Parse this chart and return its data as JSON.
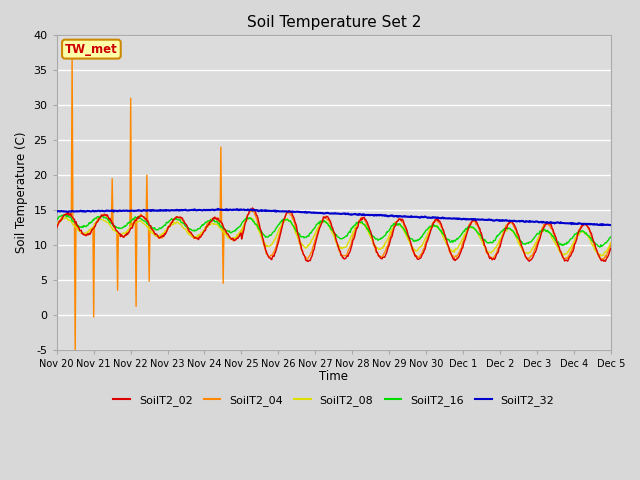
{
  "title": "Soil Temperature Set 2",
  "ylabel": "Soil Temperature (C)",
  "xlabel": "Time",
  "ylim": [
    -5,
    40
  ],
  "fig_bg": "#d8d8d8",
  "plot_bg": "#dcdcdc",
  "grid_color": "#ffffff",
  "series_colors": {
    "SoilT2_02": "#dd0000",
    "SoilT2_04": "#ff8800",
    "SoilT2_08": "#dddd00",
    "SoilT2_16": "#00dd00",
    "SoilT2_32": "#0000cc"
  },
  "xtick_labels": [
    "Nov 20",
    "Nov 21",
    "Nov 22",
    "Nov 23",
    "Nov 24",
    "Nov 25",
    "Nov 26",
    "Nov 27",
    "Nov 28",
    "Nov 29",
    "Nov 30",
    "Dec 1",
    "Dec 2",
    "Dec 3",
    "Dec 4",
    "Dec 5"
  ],
  "ytick_labels": [
    "-5",
    "0",
    "5",
    "10",
    "15",
    "20",
    "25",
    "30",
    "35",
    "40"
  ],
  "ytick_vals": [
    -5,
    0,
    5,
    10,
    15,
    20,
    25,
    30,
    35,
    40
  ],
  "annotation_text": "TW_met",
  "annotation_color": "#cc0000",
  "annotation_bg": "#ffffaa",
  "annotation_border": "#cc8800",
  "spike_times_04": [
    0.42,
    0.5,
    1.0,
    1.5,
    1.65,
    2.0,
    2.15,
    2.45,
    2.52,
    4.45,
    4.5
  ],
  "spike_vals_04": [
    37.5,
    -5.5,
    -0.3,
    19.5,
    3.5,
    31.0,
    1.2,
    20.0,
    4.8,
    24.0,
    4.5
  ]
}
